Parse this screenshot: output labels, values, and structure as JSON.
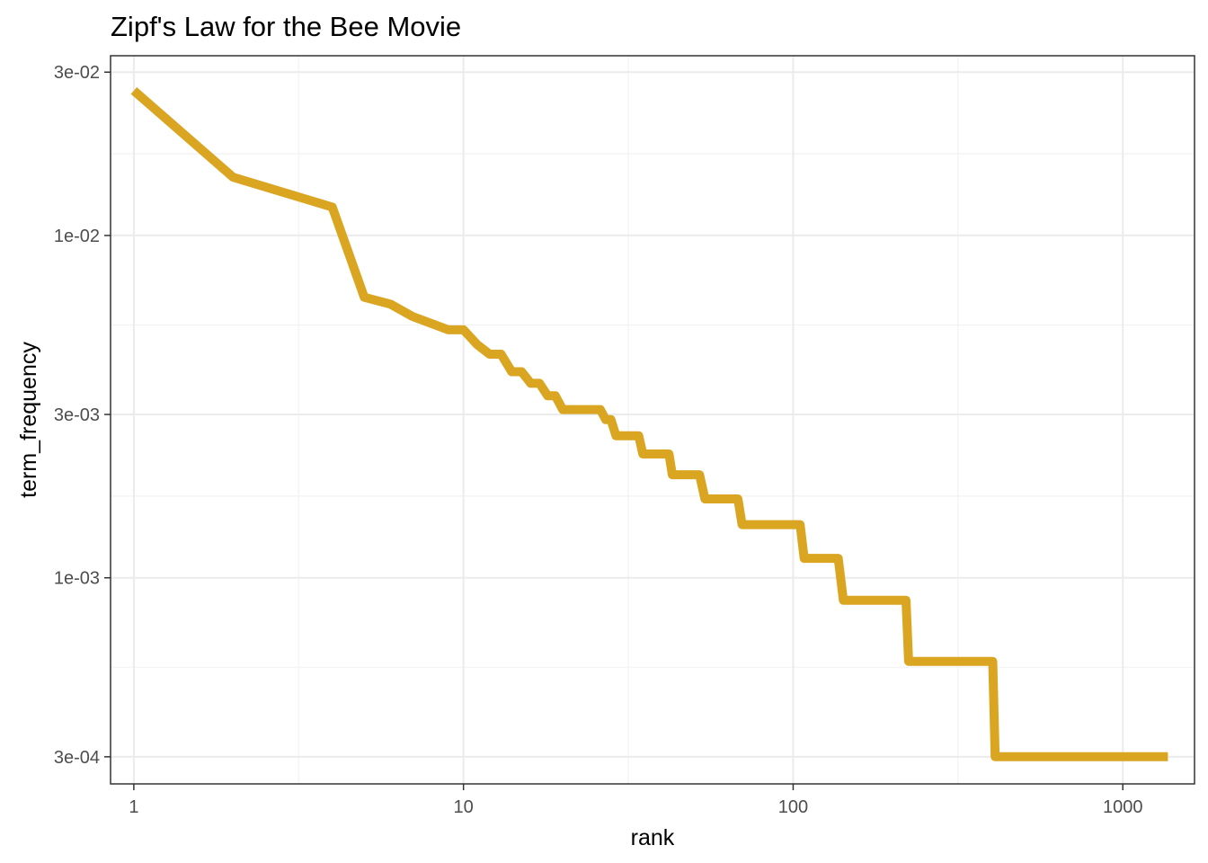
{
  "chart_data": {
    "type": "line",
    "title": "Zipf's Law for the Bee Movie",
    "xlabel": "rank",
    "ylabel": "term_frequency",
    "x_scale": "log10",
    "y_scale": "log10",
    "xlim": [
      0.85,
      1650
    ],
    "ylim": [
      0.00025,
      0.0335
    ],
    "x_ticks": [
      1,
      10,
      100,
      1000
    ],
    "x_tick_labels": [
      "1",
      "10",
      "100",
      "1000"
    ],
    "y_ticks": [
      0.0003,
      0.001,
      0.003,
      0.01,
      0.03
    ],
    "y_tick_labels": [
      "3e-04",
      "1e-03",
      "3e-03",
      "1e-02",
      "3e-02"
    ],
    "grid": true,
    "legend": "none",
    "line_color": "#DAA520",
    "series": [
      {
        "x": [
          1,
          2,
          4,
          5,
          6,
          7,
          9,
          10,
          11,
          12,
          13,
          14,
          15,
          16,
          17,
          18,
          19,
          20,
          21,
          22,
          26,
          27,
          28,
          29,
          34,
          35,
          42,
          43,
          52,
          54,
          68,
          70,
          105,
          108,
          137,
          142,
          220,
          224,
          403,
          410,
          1370
        ],
        "y": [
          0.0265,
          0.0148,
          0.0121,
          0.0066,
          0.0063,
          0.0058,
          0.0053,
          0.0053,
          0.0048,
          0.0045,
          0.0045,
          0.004,
          0.004,
          0.0037,
          0.0037,
          0.0034,
          0.0034,
          0.0031,
          0.0031,
          0.0031,
          0.0031,
          0.0029,
          0.0029,
          0.0026,
          0.0026,
          0.0023,
          0.0023,
          0.002,
          0.002,
          0.0017,
          0.0017,
          0.00143,
          0.00143,
          0.00114,
          0.00114,
          0.00086,
          0.00086,
          0.00057,
          0.00057,
          0.0003,
          0.0003
        ]
      }
    ]
  }
}
